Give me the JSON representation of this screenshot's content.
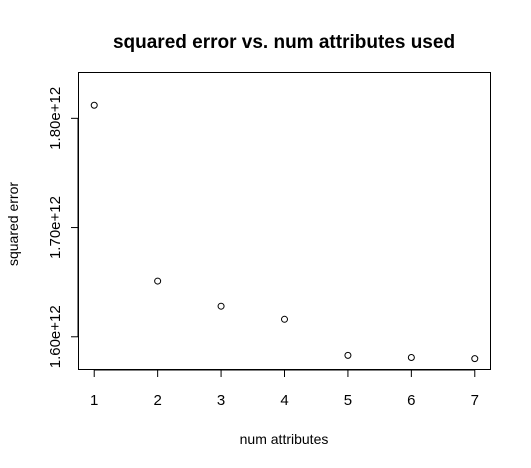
{
  "chart_data": {
    "type": "scatter",
    "title": "squared error vs. num attributes used",
    "xlabel": "num attributes",
    "ylabel": "squared error",
    "x": [
      1,
      2,
      3,
      4,
      5,
      6,
      7
    ],
    "y": [
      1812000000000,
      1651000000000,
      1628000000000,
      1616000000000,
      1583000000000,
      1581000000000,
      1580000000000
    ],
    "xticks": [
      1,
      2,
      3,
      4,
      5,
      6,
      7
    ],
    "xtick_labels": [
      "1",
      "2",
      "3",
      "4",
      "5",
      "6",
      "7"
    ],
    "yticks": [
      1600000000000,
      1700000000000,
      1800000000000
    ],
    "ytick_labels": [
      "1.60e+12",
      "1.70e+12",
      "1.80e+12"
    ],
    "xlim": [
      0.76,
      7.24
    ],
    "ylim": [
      1570500000000,
      1841500000000
    ],
    "grid": false,
    "legend": "none",
    "marker": "open-circle",
    "colors": {
      "points": "#000000",
      "axes": "#000000",
      "background": "#ffffff"
    }
  }
}
